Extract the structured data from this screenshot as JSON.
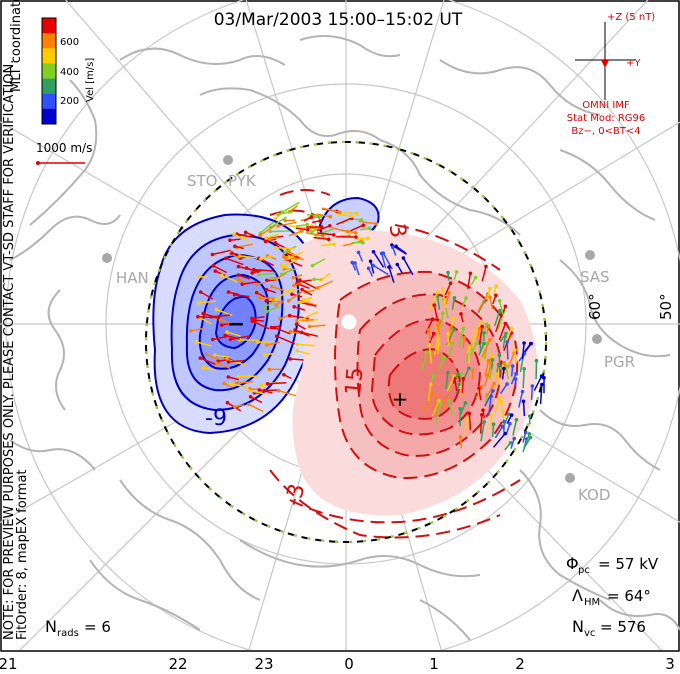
{
  "title": "03/Mar/2003 15:00–15:02 UT",
  "colorbar": {
    "label": "Vel [m/s]",
    "ticks": [
      "600",
      "400",
      "200"
    ],
    "colors": [
      "#e60000",
      "#ff8000",
      "#ffcc00",
      "#80d020",
      "#30a060",
      "#3050ff",
      "#0000d0"
    ]
  },
  "side_texts": {
    "coord": "MLT coordinates",
    "note": "NOTE: FOR PREVIEW PURPOSES ONLY. PLEASE CONTACT VT-SD STAFF FOR VERIFICATION.",
    "fit": "FitOrder: 8, mapEX format"
  },
  "scale_vector": "1000 m/s",
  "imf": {
    "header": "+Z (5 nT)",
    "y_label": "+Y",
    "source": "OMNI IMF",
    "model": "Stat Mod: RG96",
    "condition": "Bz−, 0<BT<4"
  },
  "stations": [
    "STO",
    "PYK",
    "HAN",
    "SAS",
    "PGR",
    "KOD"
  ],
  "lat_labels": [
    "60°",
    "50°"
  ],
  "contour_labels": [
    "-9",
    "15",
    "-3",
    "3"
  ],
  "mlt_axis": [
    "21",
    "22",
    "23",
    "0",
    "1",
    "2",
    "3"
  ],
  "stats": {
    "phi": "Φ",
    "phi_sub": "pc",
    "phi_val": "= 57 kV",
    "lam": "Λ",
    "lam_sub": "HM",
    "lam_val": "= 64°",
    "nvc": "N",
    "nvc_sub": "vc",
    "nvc_val": "= 576",
    "nrads": "N",
    "nrads_sub": "rads",
    "nrads_val": "= 6"
  },
  "pole_markers": {
    "min": "−",
    "max": "+"
  },
  "colors": {
    "negative": "#0000c0",
    "positive": "#d01010",
    "land": "#b4b4b4",
    "grid": "#c8c8c8",
    "imf": "#e00000"
  }
}
